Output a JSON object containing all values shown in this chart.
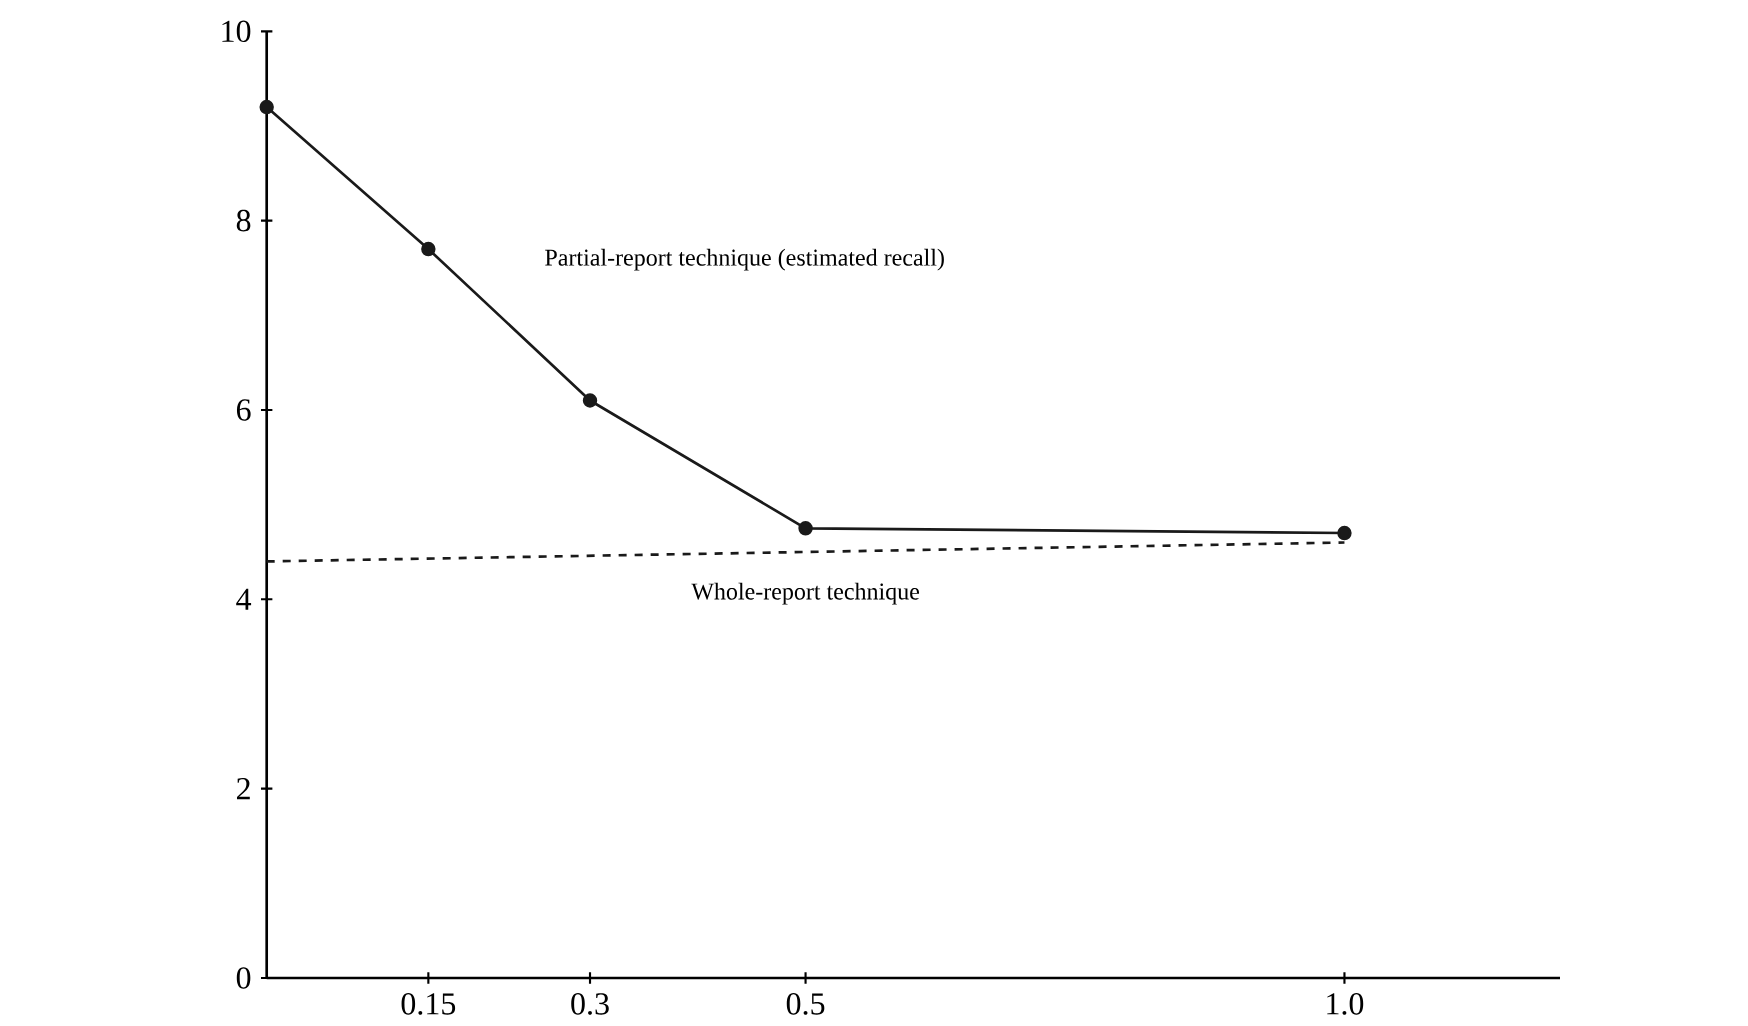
{
  "chart_data": {
    "type": "line",
    "xlim": [
      0,
      1.2
    ],
    "xticks": [
      0.15,
      0.3,
      0.5,
      {
        "value": 1.0,
        "label": "1.0"
      }
    ],
    "ylim": [
      0,
      10
    ],
    "yticks": [
      0,
      2,
      4,
      6,
      8,
      10
    ],
    "grid": false,
    "series": [
      {
        "name": "Partial-report technique (estimated recall)",
        "color": "#1a1a1a",
        "x": [
          0,
          0.15,
          0.3,
          0.5,
          1.0
        ],
        "values": [
          9.2,
          7.7,
          6.1,
          4.75,
          4.7
        ],
        "marker": "circle",
        "line_style": "solid"
      },
      {
        "name": "Whole-report technique",
        "color": "#1a1a1a",
        "x": [
          0,
          1.0
        ],
        "values": [
          4.4,
          4.6
        ],
        "marker": "none",
        "line_style": "dashed"
      }
    ]
  }
}
